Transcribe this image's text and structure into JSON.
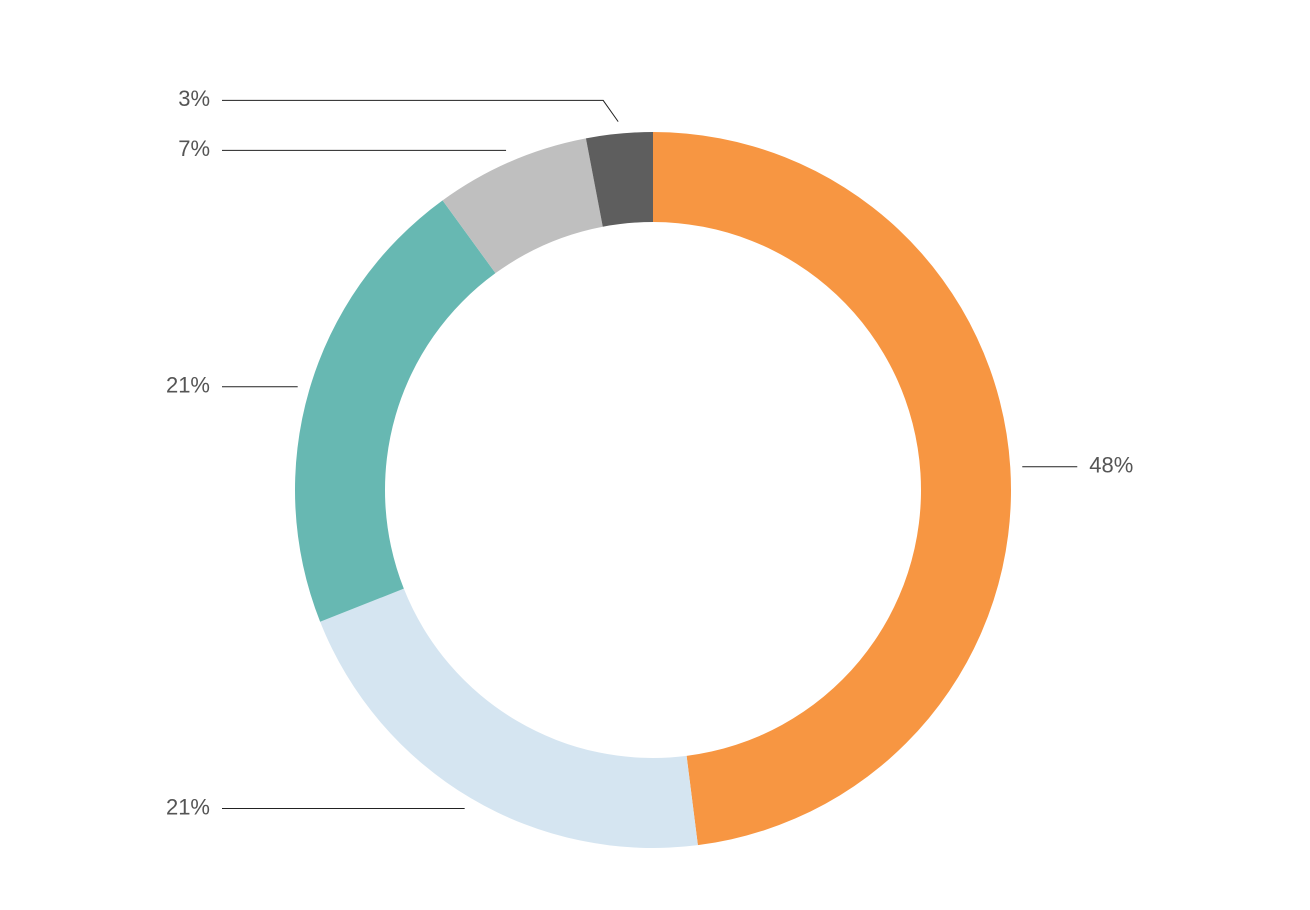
{
  "chart_data": {
    "type": "donut",
    "values": [
      48,
      21,
      21,
      7,
      3
    ],
    "value_labels": [
      "48%",
      "21%",
      "21%",
      "7%",
      "3%"
    ],
    "colors": [
      "#f79642",
      "#d5e5f1",
      "#67b8b2",
      "#bfbfbf",
      "#5e5e5e"
    ]
  }
}
